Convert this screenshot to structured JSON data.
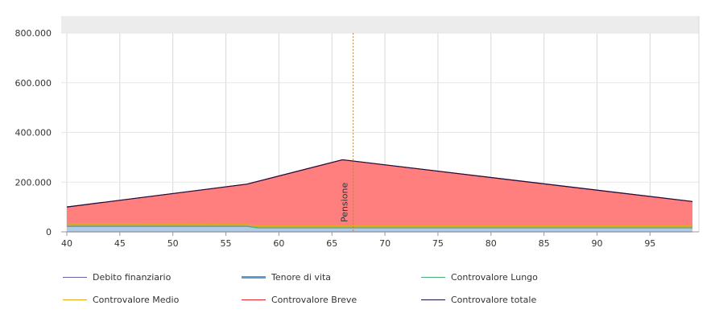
{
  "chart_data": {
    "type": "area",
    "xlim": [
      40,
      99
    ],
    "ylim": [
      0,
      800000
    ],
    "x_ticks": [
      "40",
      "45",
      "50",
      "55",
      "60",
      "65",
      "70",
      "75",
      "80",
      "85",
      "90",
      "95"
    ],
    "y_ticks": [
      "0",
      "200.000",
      "400.000",
      "600.000",
      "800.000"
    ],
    "y_tick_values": [
      0,
      200000,
      400000,
      600000,
      800000
    ],
    "x_tick_values": [
      40,
      45,
      50,
      55,
      60,
      65,
      70,
      75,
      80,
      85,
      90,
      95
    ],
    "grid": true,
    "legend_position": "bottom",
    "annotation": {
      "label": "Pensione",
      "x": 67,
      "color": "#c08040"
    },
    "series": [
      {
        "name": "Debito finanziario",
        "color": "#6b5fa8",
        "style": "line",
        "x": [
          40,
          99
        ],
        "values": [
          0,
          0
        ]
      },
      {
        "name": "Tenore di vita",
        "color": "#5b9bd5",
        "fill": "#b0cbe6",
        "style": "area",
        "x": [
          40,
          57,
          58,
          99
        ],
        "values": [
          22000,
          22000,
          16000,
          16000
        ]
      },
      {
        "name": "Controvalore Lungo",
        "color": "#4caf74",
        "style": "line",
        "x": [
          40,
          57,
          58,
          99
        ],
        "values": [
          22000,
          22000,
          16000,
          16000
        ]
      },
      {
        "name": "Controvalore Medio",
        "color": "#e6a817",
        "fill": "#c8a070",
        "style": "area",
        "x": [
          40,
          47,
          57,
          58,
          99
        ],
        "values": [
          32000,
          32000,
          30000,
          24000,
          24000
        ]
      },
      {
        "name": "Controvalore Breve",
        "color": "#e8232a",
        "fill": "#ff7f7f",
        "style": "area",
        "x": [
          40,
          57,
          66,
          99
        ],
        "values": [
          100000,
          192000,
          290000,
          122000
        ]
      },
      {
        "name": "Controvalore totale",
        "color": "#1a1040",
        "style": "line",
        "x": [
          40,
          57,
          66,
          99
        ],
        "values": [
          100000,
          192000,
          290000,
          122000
        ]
      }
    ]
  },
  "legend": [
    {
      "label": "Debito finanziario",
      "color": "#6b5fa8",
      "thick": false
    },
    {
      "label": "Tenore di vita",
      "color": "#5b9bd5",
      "thick": true
    },
    {
      "label": "Controvalore Lungo",
      "color": "#4caf74",
      "thick": false
    },
    {
      "label": "Controvalore Medio",
      "color": "#e6a817",
      "thick": false
    },
    {
      "label": "Controvalore Breve",
      "color": "#e8232a",
      "thick": false
    },
    {
      "label": "Controvalore totale",
      "color": "#1a1040",
      "thick": false
    }
  ]
}
